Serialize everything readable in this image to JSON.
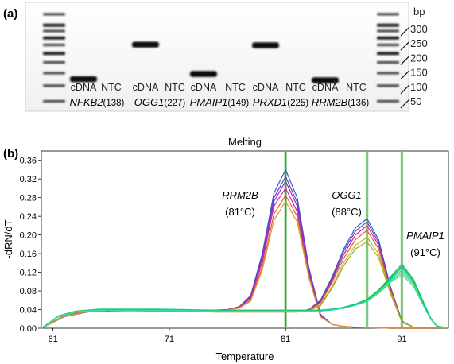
{
  "panel_a": {
    "label": "(a)",
    "bp_unit": "bp",
    "ladder_labels": [
      "300",
      "250",
      "200",
      "150",
      "100",
      "50"
    ],
    "lanes": [
      {
        "label": "cDNA",
        "band": true,
        "band_bp": 138
      },
      {
        "label": "NTC",
        "band": false
      },
      {
        "label": "cDNA",
        "band": true,
        "band_bp": 227
      },
      {
        "label": "NTC",
        "band": false
      },
      {
        "label": "cDNA",
        "band": true,
        "band_bp": 149
      },
      {
        "label": "NTC",
        "band": false
      },
      {
        "label": "cDNA",
        "band": true,
        "band_bp": 225
      },
      {
        "label": "NTC",
        "band": false
      },
      {
        "label": "cDNA",
        "band": true,
        "band_bp": 136
      },
      {
        "label": "NTC",
        "band": false
      }
    ],
    "genes": [
      {
        "name": "NFKB2",
        "size": "(138)"
      },
      {
        "name": "OGG1",
        "size": "(227)"
      },
      {
        "name": "PMAIP1",
        "size": "(149)"
      },
      {
        "name": "PRXD1",
        "size": "(225)"
      },
      {
        "name": "RRM2B",
        "size": "(136)"
      }
    ]
  },
  "panel_b": {
    "label": "(b)",
    "annotations": [
      {
        "gene": "RRM2B",
        "temp": "(81°C)"
      },
      {
        "gene": "OGG1",
        "temp": "(88°C)"
      },
      {
        "gene": "PMAIP1",
        "temp": "(91°C)"
      }
    ]
  },
  "chart_data": {
    "type": "line",
    "title": "Melting",
    "xlabel": "Temperature",
    "ylabel": "-dRN/dT",
    "xlim": [
      60,
      95
    ],
    "ylim": [
      0,
      0.38
    ],
    "xticks": [
      61,
      71,
      81,
      91
    ],
    "yticks": [
      0.0,
      0.04,
      0.08,
      0.12,
      0.16,
      0.2,
      0.24,
      0.28,
      0.32,
      0.36
    ],
    "ytick_labels": [
      "0.00",
      "0.04",
      "0.08",
      "0.12",
      "0.16",
      "0.20",
      "0.24",
      "0.28",
      "0.32",
      "0.36"
    ],
    "grid": false,
    "vertical_lines": [
      81,
      88,
      91
    ],
    "series": [
      {
        "group": "RRM2B",
        "color": "#2f5fd0",
        "x": [
          60,
          62,
          64,
          66,
          70,
          74,
          76,
          77,
          78,
          79,
          80,
          81,
          82,
          83,
          84,
          85,
          86,
          87,
          90,
          95
        ],
        "y": [
          0.0,
          0.028,
          0.038,
          0.04,
          0.04,
          0.038,
          0.04,
          0.046,
          0.07,
          0.16,
          0.29,
          0.34,
          0.28,
          0.13,
          0.03,
          0.008,
          0.004,
          0.002,
          0.0,
          0.0
        ]
      },
      {
        "group": "RRM2B",
        "color": "#6a3fb8",
        "x": [
          60,
          62,
          64,
          66,
          70,
          74,
          76,
          77,
          78,
          79,
          80,
          81,
          82,
          83,
          84,
          85,
          86,
          87,
          90,
          95
        ],
        "y": [
          0.0,
          0.026,
          0.036,
          0.038,
          0.039,
          0.037,
          0.039,
          0.045,
          0.068,
          0.155,
          0.28,
          0.325,
          0.27,
          0.125,
          0.028,
          0.008,
          0.004,
          0.002,
          0.0,
          0.0
        ]
      },
      {
        "group": "RRM2B",
        "color": "#9a2bd6",
        "x": [
          60,
          62,
          64,
          66,
          70,
          74,
          76,
          77,
          78,
          79,
          80,
          81,
          82,
          83,
          84,
          85,
          86,
          87,
          90,
          95
        ],
        "y": [
          0.0,
          0.027,
          0.037,
          0.039,
          0.04,
          0.038,
          0.04,
          0.046,
          0.066,
          0.15,
          0.272,
          0.315,
          0.262,
          0.122,
          0.027,
          0.008,
          0.004,
          0.002,
          0.0,
          0.0
        ]
      },
      {
        "group": "RRM2B",
        "color": "#c02a9a",
        "x": [
          60,
          62,
          64,
          66,
          70,
          74,
          76,
          77,
          78,
          79,
          80,
          81,
          82,
          83,
          84,
          85,
          86,
          87,
          90,
          95
        ],
        "y": [
          0.0,
          0.025,
          0.035,
          0.037,
          0.038,
          0.036,
          0.038,
          0.044,
          0.064,
          0.142,
          0.262,
          0.3,
          0.25,
          0.118,
          0.026,
          0.008,
          0.004,
          0.002,
          0.0,
          0.0
        ]
      },
      {
        "group": "RRM2B",
        "color": "#e0603a",
        "x": [
          60,
          62,
          64,
          66,
          70,
          74,
          76,
          77,
          78,
          79,
          80,
          81,
          82,
          83,
          84,
          85,
          86,
          87,
          90,
          95
        ],
        "y": [
          0.0,
          0.028,
          0.037,
          0.039,
          0.039,
          0.037,
          0.039,
          0.044,
          0.06,
          0.132,
          0.245,
          0.285,
          0.24,
          0.112,
          0.025,
          0.008,
          0.004,
          0.002,
          0.0,
          0.0
        ]
      },
      {
        "group": "RRM2B",
        "color": "#d8a030",
        "x": [
          60,
          62,
          64,
          66,
          70,
          74,
          76,
          77,
          78,
          79,
          80,
          81,
          82,
          83,
          84,
          85,
          86,
          87,
          90,
          95
        ],
        "y": [
          0.0,
          0.026,
          0.036,
          0.038,
          0.039,
          0.037,
          0.039,
          0.043,
          0.058,
          0.125,
          0.232,
          0.272,
          0.228,
          0.108,
          0.024,
          0.008,
          0.004,
          0.002,
          0.0,
          0.0
        ]
      },
      {
        "group": "OGG1",
        "color": "#2f5fd0",
        "x": [
          60,
          62,
          64,
          66,
          70,
          75,
          80,
          82,
          83,
          84,
          85,
          86,
          87,
          88,
          89,
          90,
          91,
          92,
          95
        ],
        "y": [
          0.0,
          0.028,
          0.038,
          0.04,
          0.038,
          0.036,
          0.036,
          0.036,
          0.04,
          0.06,
          0.11,
          0.17,
          0.215,
          0.235,
          0.19,
          0.09,
          0.015,
          0.002,
          0.0
        ]
      },
      {
        "group": "OGG1",
        "color": "#6a3fb8",
        "x": [
          60,
          62,
          64,
          66,
          70,
          75,
          80,
          82,
          83,
          84,
          85,
          86,
          87,
          88,
          89,
          90,
          91,
          92,
          95
        ],
        "y": [
          0.0,
          0.027,
          0.037,
          0.039,
          0.038,
          0.036,
          0.036,
          0.036,
          0.04,
          0.058,
          0.106,
          0.165,
          0.208,
          0.228,
          0.184,
          0.088,
          0.015,
          0.002,
          0.0
        ]
      },
      {
        "group": "OGG1",
        "color": "#c02a9a",
        "x": [
          60,
          62,
          64,
          66,
          70,
          75,
          80,
          82,
          83,
          84,
          85,
          86,
          87,
          88,
          89,
          90,
          91,
          92,
          95
        ],
        "y": [
          0.0,
          0.026,
          0.036,
          0.038,
          0.037,
          0.035,
          0.035,
          0.035,
          0.039,
          0.056,
          0.102,
          0.158,
          0.2,
          0.22,
          0.178,
          0.085,
          0.014,
          0.002,
          0.0
        ]
      },
      {
        "group": "OGG1",
        "color": "#e0603a",
        "x": [
          60,
          62,
          64,
          66,
          70,
          75,
          80,
          82,
          83,
          84,
          85,
          86,
          87,
          88,
          89,
          90,
          91,
          92,
          95
        ],
        "y": [
          0.0,
          0.028,
          0.037,
          0.039,
          0.038,
          0.036,
          0.036,
          0.036,
          0.039,
          0.054,
          0.098,
          0.15,
          0.19,
          0.21,
          0.17,
          0.082,
          0.014,
          0.002,
          0.0
        ]
      },
      {
        "group": "OGG1",
        "color": "#c8b028",
        "x": [
          60,
          62,
          64,
          66,
          70,
          75,
          80,
          82,
          83,
          84,
          85,
          86,
          87,
          88,
          89,
          90,
          91,
          92,
          95
        ],
        "y": [
          0.0,
          0.026,
          0.036,
          0.038,
          0.037,
          0.035,
          0.035,
          0.035,
          0.038,
          0.05,
          0.09,
          0.14,
          0.178,
          0.195,
          0.16,
          0.078,
          0.013,
          0.002,
          0.0
        ]
      },
      {
        "group": "OGG1",
        "color": "#9ab020",
        "x": [
          60,
          62,
          64,
          66,
          70,
          75,
          80,
          82,
          83,
          84,
          85,
          86,
          87,
          88,
          89,
          90,
          91,
          92,
          95
        ],
        "y": [
          0.0,
          0.027,
          0.036,
          0.038,
          0.037,
          0.035,
          0.035,
          0.035,
          0.038,
          0.048,
          0.086,
          0.134,
          0.17,
          0.185,
          0.152,
          0.075,
          0.013,
          0.002,
          0.0
        ]
      },
      {
        "group": "PMAIP1",
        "color": "#22c25a",
        "x": [
          60,
          61.5,
          63,
          65,
          70,
          75,
          80,
          84,
          85,
          86,
          87,
          88,
          89,
          90,
          91,
          92,
          93,
          93.5,
          94,
          95
        ],
        "y": [
          0.0,
          0.026,
          0.036,
          0.04,
          0.04,
          0.038,
          0.038,
          0.038,
          0.04,
          0.044,
          0.05,
          0.06,
          0.08,
          0.105,
          0.13,
          0.1,
          0.045,
          0.02,
          0.005,
          0.0
        ]
      },
      {
        "group": "PMAIP1",
        "color": "#1fd08a",
        "x": [
          60,
          61.5,
          63,
          65,
          70,
          75,
          80,
          84,
          85,
          86,
          87,
          88,
          89,
          90,
          91,
          92,
          93,
          93.5,
          94,
          95
        ],
        "y": [
          0.0,
          0.027,
          0.037,
          0.041,
          0.041,
          0.039,
          0.039,
          0.039,
          0.041,
          0.045,
          0.052,
          0.062,
          0.082,
          0.11,
          0.138,
          0.105,
          0.048,
          0.021,
          0.005,
          0.0
        ]
      },
      {
        "group": "PMAIP1",
        "color": "#2ad8c0",
        "x": [
          60,
          61.5,
          63,
          65,
          70,
          75,
          80,
          84,
          85,
          86,
          87,
          88,
          89,
          90,
          91,
          92,
          93,
          93.5,
          94,
          95
        ],
        "y": [
          0.0,
          0.025,
          0.035,
          0.039,
          0.039,
          0.037,
          0.037,
          0.037,
          0.039,
          0.043,
          0.049,
          0.058,
          0.077,
          0.102,
          0.125,
          0.096,
          0.044,
          0.019,
          0.004,
          0.0
        ]
      },
      {
        "group": "PMAIP1",
        "color": "#4ae840",
        "x": [
          60,
          61.5,
          63,
          65,
          70,
          75,
          80,
          84,
          85,
          86,
          87,
          88,
          89,
          90,
          91,
          92,
          93,
          93.5,
          94,
          95
        ],
        "y": [
          0.0,
          0.026,
          0.036,
          0.04,
          0.04,
          0.038,
          0.038,
          0.038,
          0.04,
          0.044,
          0.05,
          0.059,
          0.078,
          0.1,
          0.12,
          0.094,
          0.043,
          0.019,
          0.004,
          0.0
        ]
      },
      {
        "group": "PMAIP1",
        "color": "#18b878",
        "x": [
          60,
          61.5,
          63,
          65,
          70,
          75,
          80,
          84,
          85,
          86,
          87,
          88,
          89,
          90,
          91,
          92,
          93,
          93.5,
          94,
          95
        ],
        "y": [
          0.0,
          0.027,
          0.037,
          0.04,
          0.04,
          0.038,
          0.038,
          0.038,
          0.04,
          0.045,
          0.051,
          0.061,
          0.081,
          0.108,
          0.134,
          0.102,
          0.046,
          0.02,
          0.005,
          0.0
        ]
      },
      {
        "group": "PMAIP1",
        "color": "#30e0a8",
        "x": [
          60,
          61.5,
          63,
          65,
          70,
          75,
          80,
          84,
          85,
          86,
          87,
          88,
          89,
          90,
          91,
          92,
          93,
          93.5,
          94,
          95
        ],
        "y": [
          0.0,
          0.026,
          0.036,
          0.039,
          0.039,
          0.037,
          0.037,
          0.037,
          0.039,
          0.043,
          0.049,
          0.057,
          0.075,
          0.098,
          0.115,
          0.09,
          0.041,
          0.018,
          0.004,
          0.0
        ]
      }
    ]
  }
}
